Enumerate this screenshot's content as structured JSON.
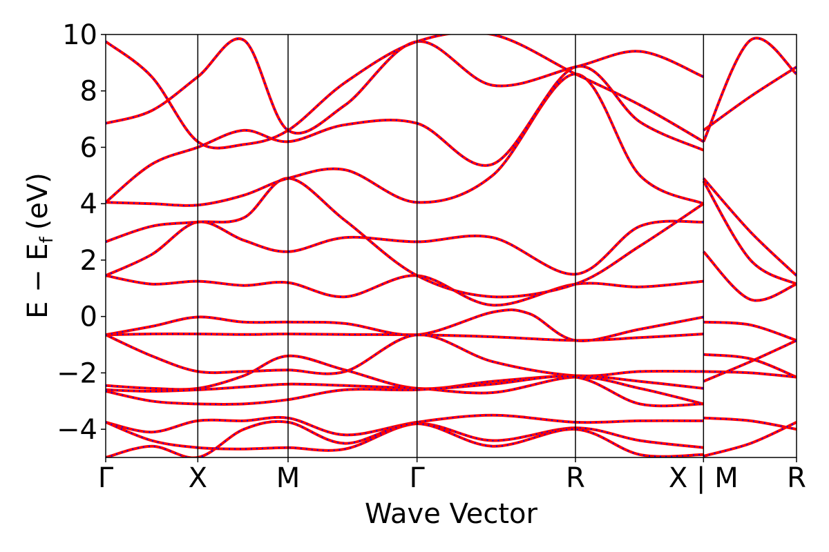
{
  "chart_data": {
    "type": "line",
    "title": "",
    "xlabel": "Wave Vector",
    "ylabel_main": "E − E",
    "ylabel_sub": "f",
    "ylabel_unit": "(eV)",
    "ylim": [
      -5,
      10
    ],
    "xlim": [
      0,
      7.5
    ],
    "yticks": [
      -4,
      -2,
      0,
      2,
      4,
      6,
      8,
      10
    ],
    "ytick_labels": [
      "−4",
      "−2",
      "0",
      "2",
      "4",
      "6",
      "8",
      "10"
    ],
    "high_symmetry_points": [
      {
        "label": "Γ",
        "x": 0.0
      },
      {
        "label": "X",
        "x": 1.0
      },
      {
        "label": "M",
        "x": 1.98
      },
      {
        "label": "Γ",
        "x": 3.38
      },
      {
        "label": "R",
        "x": 5.1
      },
      {
        "label": "X | M",
        "x": 6.49
      },
      {
        "label": "R",
        "x": 7.5
      }
    ],
    "grid": false,
    "legend": "none",
    "series_styles": [
      {
        "color": "#ff0000",
        "style": "solid"
      },
      {
        "color": "#0000ff",
        "style": "dotted"
      }
    ],
    "bands": [
      [
        [
          0,
          -0.65
        ],
        [
          0.5,
          -0.62
        ],
        [
          1.0,
          -0.62
        ],
        [
          1.5,
          -0.64
        ],
        [
          1.98,
          -0.62
        ],
        [
          2.6,
          -0.64
        ],
        [
          3.38,
          -0.65
        ],
        [
          4.2,
          -0.72
        ],
        [
          5.1,
          -0.85
        ],
        [
          5.8,
          -0.75
        ],
        [
          6.49,
          -0.62
        ]
      ],
      [
        [
          0,
          -0.65
        ],
        [
          0.5,
          -0.35
        ],
        [
          1.0,
          -0.02
        ],
        [
          1.5,
          -0.2
        ],
        [
          1.98,
          -0.2
        ],
        [
          2.6,
          -0.25
        ],
        [
          3.38,
          -0.65
        ],
        [
          4.2,
          0.15
        ],
        [
          4.6,
          0.1
        ],
        [
          5.1,
          -0.85
        ],
        [
          5.8,
          -0.45
        ],
        [
          6.49,
          -0.02
        ]
      ],
      [
        [
          0,
          -0.65
        ],
        [
          0.5,
          -1.4
        ],
        [
          1.0,
          -1.95
        ],
        [
          1.5,
          -1.95
        ],
        [
          1.98,
          -1.9
        ],
        [
          2.6,
          -1.95
        ],
        [
          3.38,
          -0.65
        ],
        [
          4.2,
          -1.6
        ],
        [
          5.1,
          -2.1
        ],
        [
          5.8,
          -1.95
        ],
        [
          6.49,
          -1.95
        ]
      ],
      [
        [
          0,
          -2.45
        ],
        [
          0.5,
          -2.55
        ],
        [
          1.0,
          -2.55
        ],
        [
          1.5,
          -2.1
        ],
        [
          1.98,
          -1.4
        ],
        [
          2.6,
          -1.9
        ],
        [
          3.38,
          -2.55
        ],
        [
          4.2,
          -2.3
        ],
        [
          5.1,
          -2.1
        ],
        [
          5.8,
          -2.3
        ],
        [
          6.49,
          -2.55
        ]
      ],
      [
        [
          0,
          -2.6
        ],
        [
          0.5,
          -2.65
        ],
        [
          1.0,
          -2.6
        ],
        [
          1.5,
          -2.5
        ],
        [
          1.98,
          -2.4
        ],
        [
          2.6,
          -2.45
        ],
        [
          3.38,
          -2.55
        ],
        [
          4.2,
          -2.7
        ],
        [
          5.1,
          -2.15
        ],
        [
          5.8,
          -2.55
        ],
        [
          6.49,
          -3.1
        ]
      ],
      [
        [
          0,
          -2.65
        ],
        [
          0.5,
          -3.0
        ],
        [
          1.0,
          -3.1
        ],
        [
          1.5,
          -3.1
        ],
        [
          1.98,
          -2.95
        ],
        [
          2.6,
          -2.6
        ],
        [
          3.38,
          -2.6
        ],
        [
          4.2,
          -2.4
        ],
        [
          5.1,
          -2.15
        ],
        [
          5.8,
          -3.1
        ],
        [
          6.49,
          -3.1
        ]
      ],
      [
        [
          0,
          -3.75
        ],
        [
          0.5,
          -4.1
        ],
        [
          1.0,
          -3.7
        ],
        [
          1.5,
          -3.7
        ],
        [
          1.98,
          -3.6
        ],
        [
          2.6,
          -4.2
        ],
        [
          3.38,
          -3.75
        ],
        [
          4.2,
          -3.5
        ],
        [
          5.1,
          -3.75
        ],
        [
          5.8,
          -3.7
        ],
        [
          6.49,
          -3.7
        ]
      ],
      [
        [
          0,
          -3.75
        ],
        [
          0.5,
          -4.4
        ],
        [
          1.0,
          -4.65
        ],
        [
          1.5,
          -4.7
        ],
        [
          1.98,
          -4.65
        ],
        [
          2.6,
          -4.7
        ],
        [
          3.38,
          -3.8
        ],
        [
          4.2,
          -4.4
        ],
        [
          5.1,
          -3.95
        ],
        [
          5.8,
          -4.4
        ],
        [
          6.49,
          -4.65
        ]
      ],
      [
        [
          0,
          -5.0
        ],
        [
          0.5,
          -4.6
        ],
        [
          1.0,
          -5.0
        ],
        [
          1.5,
          -4.0
        ],
        [
          1.98,
          -3.75
        ],
        [
          2.6,
          -4.5
        ],
        [
          3.38,
          -3.8
        ],
        [
          4.2,
          -4.6
        ],
        [
          5.1,
          -4.0
        ],
        [
          5.8,
          -4.9
        ],
        [
          6.49,
          -4.9
        ]
      ],
      [
        [
          0,
          1.45
        ],
        [
          0.5,
          1.15
        ],
        [
          1.0,
          1.25
        ],
        [
          1.5,
          1.1
        ],
        [
          1.98,
          1.2
        ],
        [
          2.6,
          0.7
        ],
        [
          3.38,
          1.45
        ],
        [
          4.2,
          0.4
        ],
        [
          5.1,
          1.15
        ],
        [
          5.8,
          1.05
        ],
        [
          6.49,
          1.25
        ]
      ],
      [
        [
          0,
          1.45
        ],
        [
          0.5,
          2.2
        ],
        [
          1.0,
          3.35
        ],
        [
          1.5,
          2.7
        ],
        [
          1.98,
          2.3
        ],
        [
          2.6,
          2.8
        ],
        [
          3.38,
          2.65
        ],
        [
          4.2,
          2.8
        ],
        [
          5.1,
          1.5
        ],
        [
          5.8,
          3.2
        ],
        [
          6.49,
          3.35
        ]
      ],
      [
        [
          0,
          2.65
        ],
        [
          0.5,
          3.2
        ],
        [
          1.0,
          3.35
        ],
        [
          1.5,
          3.5
        ],
        [
          1.98,
          4.9
        ],
        [
          2.6,
          3.4
        ],
        [
          3.38,
          1.45
        ],
        [
          4.2,
          0.7
        ],
        [
          5.1,
          1.15
        ],
        [
          5.8,
          2.5
        ],
        [
          6.49,
          4.0
        ]
      ],
      [
        [
          0,
          4.05
        ],
        [
          0.5,
          4.0
        ],
        [
          1.0,
          3.95
        ],
        [
          1.5,
          4.3
        ],
        [
          1.98,
          4.9
        ],
        [
          2.6,
          5.2
        ],
        [
          3.38,
          4.05
        ],
        [
          4.2,
          5.0
        ],
        [
          5.1,
          8.6
        ],
        [
          5.8,
          5.0
        ],
        [
          6.49,
          4.0
        ]
      ],
      [
        [
          0,
          4.05
        ],
        [
          0.5,
          5.4
        ],
        [
          1.0,
          6.0
        ],
        [
          1.5,
          6.6
        ],
        [
          1.98,
          6.2
        ],
        [
          2.6,
          6.8
        ],
        [
          3.38,
          6.85
        ],
        [
          4.2,
          5.4
        ],
        [
          5.1,
          8.85
        ],
        [
          5.8,
          6.9
        ],
        [
          6.49,
          5.9
        ]
      ],
      [
        [
          0,
          6.85
        ],
        [
          0.5,
          7.3
        ],
        [
          1.0,
          8.5
        ],
        [
          1.5,
          9.8
        ],
        [
          1.98,
          6.6
        ],
        [
          2.6,
          7.5
        ],
        [
          3.38,
          9.75
        ],
        [
          4.2,
          8.2
        ],
        [
          5.1,
          8.85
        ],
        [
          5.8,
          9.4
        ],
        [
          6.49,
          8.5
        ]
      ],
      [
        [
          0,
          9.75
        ],
        [
          0.5,
          8.5
        ],
        [
          1.0,
          6.2
        ],
        [
          1.5,
          6.1
        ],
        [
          1.98,
          6.6
        ],
        [
          2.6,
          8.3
        ],
        [
          3.38,
          9.75
        ],
        [
          4.2,
          10.0
        ],
        [
          5.1,
          8.6
        ],
        [
          5.8,
          7.5
        ],
        [
          6.49,
          6.2
        ]
      ],
      [
        [
          6.49,
          -0.2
        ],
        [
          7.0,
          -0.3
        ],
        [
          7.5,
          -0.85
        ]
      ],
      [
        [
          6.49,
          -1.35
        ],
        [
          7.0,
          -1.5
        ],
        [
          7.5,
          -2.15
        ]
      ],
      [
        [
          6.49,
          -1.95
        ],
        [
          7.0,
          -2.0
        ],
        [
          7.5,
          -2.15
        ]
      ],
      [
        [
          6.49,
          -2.3
        ],
        [
          7.0,
          -1.6
        ],
        [
          7.5,
          -0.85
        ]
      ],
      [
        [
          6.49,
          -3.6
        ],
        [
          7.0,
          -3.7
        ],
        [
          7.5,
          -4.0
        ]
      ],
      [
        [
          6.49,
          -4.95
        ],
        [
          7.0,
          -4.5
        ],
        [
          7.5,
          -3.75
        ]
      ],
      [
        [
          6.49,
          2.3
        ],
        [
          7.0,
          0.6
        ],
        [
          7.5,
          1.15
        ]
      ],
      [
        [
          6.49,
          4.9
        ],
        [
          7.0,
          3.0
        ],
        [
          7.5,
          1.45
        ]
      ],
      [
        [
          6.49,
          4.8
        ],
        [
          7.0,
          2.0
        ],
        [
          7.5,
          1.15
        ]
      ],
      [
        [
          6.49,
          6.6
        ],
        [
          7.0,
          7.8
        ],
        [
          7.5,
          8.85
        ]
      ],
      [
        [
          6.49,
          6.2
        ],
        [
          7.0,
          9.8
        ],
        [
          7.5,
          8.6
        ]
      ]
    ]
  }
}
